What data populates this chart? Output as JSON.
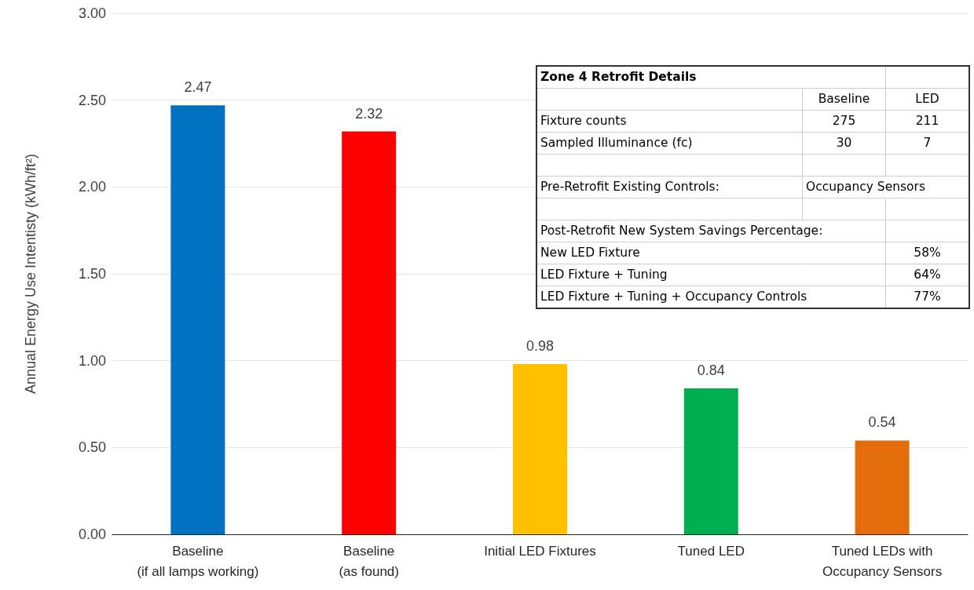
{
  "chart_data": [
    {
      "type": "bar",
      "ylabel": "Annual Energy Use Intentisty (kWh/ft²)",
      "categories": [
        "Baseline\n(if all lamps working)",
        "Baseline\n(as found)",
        "Initial LED Fixtures",
        "Tuned LED",
        "Tuned LEDs with\nOccupancy Sensors"
      ],
      "values": [
        2.47,
        2.32,
        0.98,
        0.84,
        0.54
      ],
      "colors": [
        "#0070c0",
        "#ff0000",
        "#ffc000",
        "#00b050",
        "#e46c0a"
      ],
      "ylim": [
        0,
        3
      ],
      "yticks": [
        {
          "value": 0,
          "label": "0.00"
        },
        {
          "value": 0.5,
          "label": "0.50"
        },
        {
          "value": 1,
          "label": "1.00"
        },
        {
          "value": 1.5,
          "label": "1.50"
        },
        {
          "value": 2,
          "label": "2.00"
        },
        {
          "value": 2.5,
          "label": "2.50"
        },
        {
          "value": 3,
          "label": "3.00"
        }
      ],
      "grid": "y",
      "data_labels": true
    },
    {
      "type": "other",
      "annotations": [
        "Zone 4 Retrofit Details",
        null,
        null,
        null,
        "Baseline",
        "LED",
        "Fixture counts",
        "275",
        "211",
        "Sampled Illuminance (fc)",
        "30",
        "7",
        null,
        null,
        null,
        "Pre-Retrofit Existing Controls:",
        "Occupancy Sensors",
        null,
        null,
        null,
        null,
        "Post-Retrofit New System Savings Percentage:",
        null,
        null,
        "New LED Fixture",
        null,
        "58%",
        "LED Fixture + Tuning",
        null,
        "64%",
        "LED Fixture + Tuning + Occupancy Controls",
        null,
        "77%"
      ]
    }
  ]
}
